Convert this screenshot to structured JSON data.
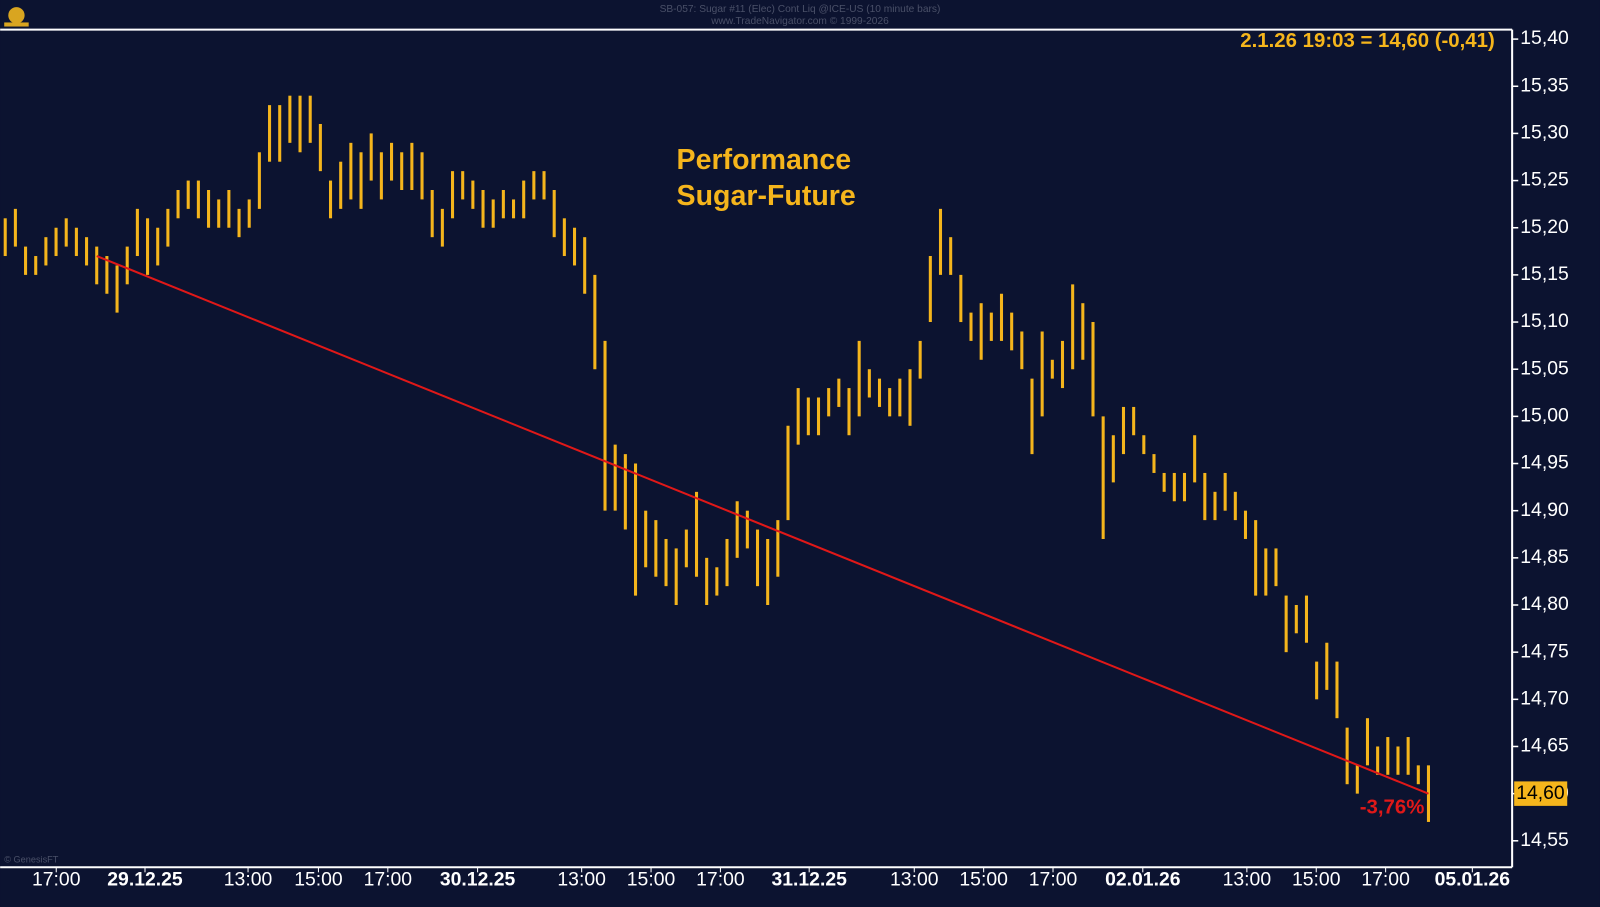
{
  "chart_data": {
    "type": "price-bars",
    "header": "SB-057: Sugar #11 (Elec) Cont Liq @ICE-US (10 minute bars)",
    "source": "www.TradeNavigator.com © 1999-2026",
    "quote": "2.1.26 19:03 = 14,60 (-0,41)",
    "annotation": "Performance\nSugar-Future",
    "change_label": "-3,76%",
    "footer": "© GenesisFT",
    "color": "#f5b51c",
    "ylim": [
      14.522,
      15.409
    ],
    "yticks": [
      {
        "value": 15.4,
        "label": "15,40"
      },
      {
        "value": 15.35,
        "label": "15,35"
      },
      {
        "value": 15.3,
        "label": "15,30"
      },
      {
        "value": 15.25,
        "label": "15,25"
      },
      {
        "value": 15.2,
        "label": "15,20"
      },
      {
        "value": 15.15,
        "label": "15,15"
      },
      {
        "value": 15.1,
        "label": "15,10"
      },
      {
        "value": 15.05,
        "label": "15,05"
      },
      {
        "value": 15.0,
        "label": "15,00"
      },
      {
        "value": 14.95,
        "label": "14,95"
      },
      {
        "value": 14.9,
        "label": "14,90"
      },
      {
        "value": 14.85,
        "label": "14,85"
      },
      {
        "value": 14.8,
        "label": "14,80"
      },
      {
        "value": 14.75,
        "label": "14,75"
      },
      {
        "value": 14.7,
        "label": "14,70"
      },
      {
        "value": 14.65,
        "label": "14,65"
      },
      {
        "value": 14.6,
        "label": "14,60"
      },
      {
        "value": 14.55,
        "label": "14,55"
      }
    ],
    "xticks": [
      "17:00",
      "29.12.25",
      "13:00",
      "15:00",
      "17:00",
      "30.12.25",
      "13:00",
      "15:00",
      "17:00",
      "31.12.25",
      "13:00",
      "15:00",
      "17:00",
      "02.01.26",
      "13:00",
      "15:00",
      "17:00",
      "05.01.26"
    ],
    "last": {
      "value": 14.6,
      "label": "14,60"
    },
    "trendline": {
      "values": [
        15.17,
        14.6
      ],
      "color": "#e01818"
    },
    "high": [
      15.21,
      15.22,
      15.18,
      15.17,
      15.19,
      15.2,
      15.21,
      15.2,
      15.19,
      15.18,
      15.17,
      15.16,
      15.18,
      15.22,
      15.21,
      15.2,
      15.22,
      15.24,
      15.25,
      15.25,
      15.24,
      15.23,
      15.24,
      15.22,
      15.23,
      15.28,
      15.33,
      15.33,
      15.34,
      15.34,
      15.34,
      15.31,
      15.25,
      15.27,
      15.29,
      15.28,
      15.3,
      15.28,
      15.29,
      15.28,
      15.29,
      15.28,
      15.24,
      15.22,
      15.26,
      15.26,
      15.25,
      15.24,
      15.23,
      15.24,
      15.23,
      15.25,
      15.26,
      15.26,
      15.24,
      15.21,
      15.2,
      15.19,
      15.15,
      15.08,
      14.97,
      14.96,
      14.95,
      14.9,
      14.89,
      14.87,
      14.86,
      14.88,
      14.92,
      14.85,
      14.84,
      14.87,
      14.91,
      14.9,
      14.88,
      14.87,
      14.89,
      14.99,
      15.03,
      15.02,
      15.02,
      15.03,
      15.04,
      15.03,
      15.08,
      15.05,
      15.04,
      15.03,
      15.04,
      15.05,
      15.08,
      15.17,
      15.22,
      15.19,
      15.15,
      15.11,
      15.12,
      15.11,
      15.13,
      15.11,
      15.09,
      15.04,
      15.09,
      15.06,
      15.08,
      15.14,
      15.12,
      15.1,
      15.0,
      14.98,
      15.01,
      15.01,
      14.98,
      14.96,
      14.94,
      14.94,
      14.94,
      14.98,
      14.94,
      14.92,
      14.94,
      14.92,
      14.9,
      14.89,
      14.86,
      14.86,
      14.81,
      14.8,
      14.81,
      14.74,
      14.76,
      14.74,
      14.67,
      14.63,
      14.68,
      14.65,
      14.66,
      14.65,
      14.66,
      14.63,
      14.63
    ],
    "low": [
      15.17,
      15.18,
      15.15,
      15.15,
      15.16,
      15.17,
      15.18,
      15.17,
      15.16,
      15.14,
      15.13,
      15.11,
      15.14,
      15.17,
      15.15,
      15.16,
      15.18,
      15.21,
      15.22,
      15.21,
      15.2,
      15.2,
      15.2,
      15.19,
      15.2,
      15.22,
      15.27,
      15.27,
      15.29,
      15.28,
      15.29,
      15.26,
      15.21,
      15.22,
      15.23,
      15.22,
      15.25,
      15.23,
      15.25,
      15.24,
      15.24,
      15.23,
      15.19,
      15.18,
      15.21,
      15.23,
      15.22,
      15.2,
      15.2,
      15.21,
      15.21,
      15.21,
      15.23,
      15.23,
      15.19,
      15.17,
      15.16,
      15.13,
      15.05,
      14.9,
      14.9,
      14.88,
      14.81,
      14.84,
      14.83,
      14.82,
      14.8,
      14.84,
      14.83,
      14.8,
      14.81,
      14.82,
      14.85,
      14.86,
      14.82,
      14.8,
      14.83,
      14.89,
      14.97,
      14.98,
      14.98,
      15.0,
      15.01,
      14.98,
      15.0,
      15.02,
      15.01,
      15.0,
      15.0,
      14.99,
      15.04,
      15.1,
      15.15,
      15.15,
      15.1,
      15.08,
      15.06,
      15.08,
      15.08,
      15.07,
      15.05,
      14.96,
      15.0,
      15.04,
      15.03,
      15.05,
      15.06,
      15.0,
      14.87,
      14.93,
      14.96,
      14.98,
      14.96,
      14.94,
      14.92,
      14.91,
      14.91,
      14.93,
      14.89,
      14.89,
      14.9,
      14.89,
      14.87,
      14.81,
      14.81,
      14.82,
      14.75,
      14.77,
      14.76,
      14.7,
      14.71,
      14.68,
      14.61,
      14.6,
      14.63,
      14.62,
      14.62,
      14.62,
      14.62,
      14.61,
      14.57
    ]
  }
}
